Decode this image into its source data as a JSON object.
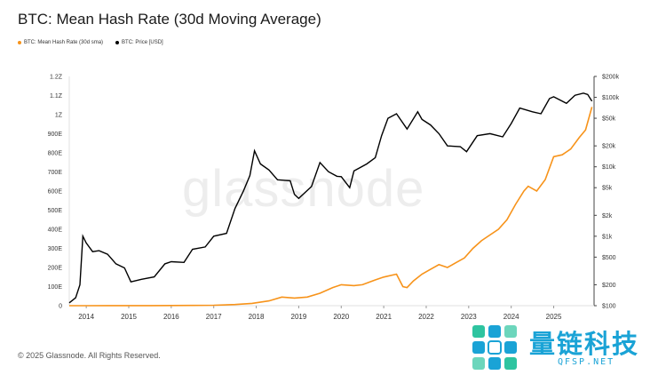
{
  "header": {
    "title": "BTC: Mean Hash Rate (30d Moving Average)"
  },
  "legend": [
    {
      "label": "BTC: Mean Hash Rate (30d sma)",
      "color": "#f7931a"
    },
    {
      "label": "BTC: Price [USD]",
      "color": "#000000"
    }
  ],
  "watermark": "glassnode",
  "footer": {
    "copyright": "© 2025 Glassnode. All Rights Reserved."
  },
  "badge": {
    "chinese": "量链科技",
    "url": "QFSP.NET",
    "icon": "grid-logo-icon"
  },
  "chart_data": {
    "type": "line",
    "title": "BTC: Mean Hash Rate (30d Moving Average)",
    "x_ticks": [
      "2014",
      "2015",
      "2016",
      "2017",
      "2018",
      "2019",
      "2020",
      "2021",
      "2022",
      "2023",
      "2024",
      "2025"
    ],
    "x_range": [
      2013.6,
      2025.95
    ],
    "y_left": {
      "ticks": [
        "0",
        "100E",
        "200E",
        "300E",
        "400E",
        "500E",
        "600E",
        "700E",
        "800E",
        "900E",
        "1Z",
        "1.1Z",
        "1.2Z"
      ],
      "range": [
        0,
        1200
      ],
      "unit": "EH/s"
    },
    "y_right": {
      "scale": "log",
      "ticks": [
        "$100",
        "$200",
        "$500",
        "$1k",
        "$2k",
        "$5k",
        "$10k",
        "$20k",
        "$50k",
        "$100k",
        "$200k"
      ],
      "tick_values": [
        100,
        200,
        500,
        1000,
        2000,
        5000,
        10000,
        20000,
        50000,
        100000,
        200000
      ],
      "range": [
        100,
        200000
      ]
    },
    "grid": false,
    "legend_position": "top-left",
    "series": [
      {
        "name": "BTC: Mean Hash Rate (30d sma)",
        "color": "#f7931a",
        "axis": "left",
        "x": [
          2013.6,
          2014.0,
          2014.5,
          2015.0,
          2015.5,
          2016.0,
          2016.5,
          2017.0,
          2017.5,
          2017.9,
          2018.3,
          2018.6,
          2018.9,
          2019.2,
          2019.5,
          2019.8,
          2020.0,
          2020.3,
          2020.5,
          2020.8,
          2021.0,
          2021.3,
          2021.45,
          2021.55,
          2021.7,
          2021.9,
          2022.1,
          2022.3,
          2022.5,
          2022.7,
          2022.9,
          2023.1,
          2023.3,
          2023.5,
          2023.7,
          2023.9,
          2024.1,
          2024.3,
          2024.4,
          2024.6,
          2024.8,
          2025.0,
          2025.2,
          2025.4,
          2025.6,
          2025.75,
          2025.85,
          2025.9
        ],
        "values": [
          0.1,
          0.2,
          0.3,
          0.4,
          0.5,
          0.8,
          1.5,
          2.5,
          6,
          12,
          25,
          45,
          40,
          45,
          65,
          95,
          110,
          105,
          110,
          135,
          150,
          165,
          100,
          95,
          130,
          165,
          190,
          215,
          200,
          225,
          250,
          300,
          340,
          370,
          400,
          450,
          530,
          600,
          625,
          600,
          660,
          780,
          790,
          820,
          880,
          920,
          1000,
          1040
        ]
      },
      {
        "name": "BTC: Price [USD]",
        "color": "#000000",
        "axis": "right",
        "x": [
          2013.6,
          2013.75,
          2013.85,
          2013.92,
          2014.0,
          2014.15,
          2014.3,
          2014.5,
          2014.7,
          2014.9,
          2015.05,
          2015.3,
          2015.6,
          2015.85,
          2016.0,
          2016.3,
          2016.5,
          2016.8,
          2017.0,
          2017.3,
          2017.5,
          2017.7,
          2017.85,
          2017.96,
          2018.1,
          2018.3,
          2018.5,
          2018.8,
          2018.9,
          2019.0,
          2019.3,
          2019.5,
          2019.7,
          2019.9,
          2020.0,
          2020.2,
          2020.3,
          2020.6,
          2020.8,
          2020.95,
          2021.1,
          2021.3,
          2021.55,
          2021.8,
          2021.9,
          2022.1,
          2022.3,
          2022.5,
          2022.8,
          2022.95,
          2023.2,
          2023.5,
          2023.8,
          2024.0,
          2024.2,
          2024.5,
          2024.7,
          2024.9,
          2025.0,
          2025.3,
          2025.5,
          2025.7,
          2025.8,
          2025.9
        ],
        "values": [
          110,
          130,
          200,
          1000,
          800,
          600,
          620,
          550,
          400,
          350,
          220,
          240,
          260,
          400,
          430,
          420,
          650,
          700,
          1000,
          1100,
          2500,
          4500,
          7500,
          17000,
          11000,
          9000,
          6500,
          6300,
          4000,
          3500,
          5200,
          11500,
          8500,
          7300,
          7200,
          5000,
          8700,
          11000,
          13500,
          28000,
          50000,
          58000,
          35000,
          62000,
          48000,
          40000,
          30000,
          20000,
          19500,
          16500,
          28000,
          30000,
          27000,
          42000,
          70000,
          62000,
          58000,
          96000,
          102000,
          82000,
          107000,
          115000,
          110000,
          88000
        ]
      }
    ]
  }
}
